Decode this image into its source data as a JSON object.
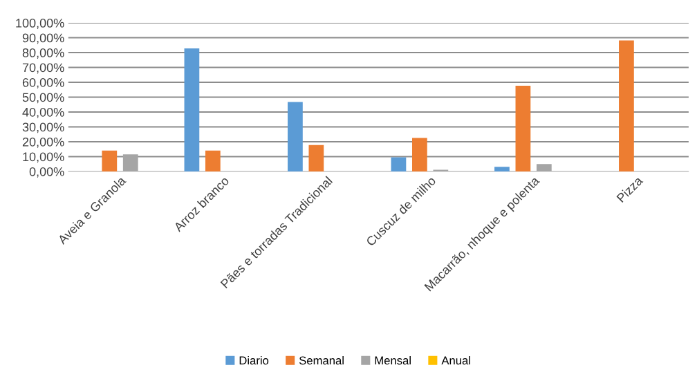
{
  "chart_data": {
    "type": "bar",
    "categories": [
      "Aveia e Granola",
      "Arroz branco",
      "Pães e torradas Tradicional",
      "Cuscuz de milho",
      "Macarrão, nhoque e polenta",
      "Pizza"
    ],
    "series": [
      {
        "name": "Diario",
        "color": "#5b9bd5",
        "values": [
          0,
          82.8,
          46.7,
          9.5,
          3.1,
          0
        ]
      },
      {
        "name": "Semanal",
        "color": "#ed7d31",
        "values": [
          14.1,
          14.1,
          17.8,
          22.5,
          57.7,
          88.2
        ]
      },
      {
        "name": "Mensal",
        "color": "#a5a5a5",
        "values": [
          11.5,
          0,
          0,
          1.1,
          5.0,
          0
        ]
      },
      {
        "name": "Anual",
        "color": "#ffc000",
        "values": [
          0,
          0,
          0,
          0,
          0,
          0
        ]
      }
    ],
    "ylim": [
      0,
      100
    ],
    "yticks": [
      {
        "value": 0,
        "label": "0,00%"
      },
      {
        "value": 10,
        "label": "10,00%"
      },
      {
        "value": 20,
        "label": "20,00%"
      },
      {
        "value": 30,
        "label": "30,00%"
      },
      {
        "value": 40,
        "label": "40,00%"
      },
      {
        "value": 50,
        "label": "50,00%"
      },
      {
        "value": 60,
        "label": "60,00%"
      },
      {
        "value": 70,
        "label": "70,00%"
      },
      {
        "value": 80,
        "label": "80,00%"
      },
      {
        "value": 90,
        "label": "90,00%"
      },
      {
        "value": 100,
        "label": "100,00%"
      }
    ],
    "grid": "y",
    "legend": "bottom"
  }
}
